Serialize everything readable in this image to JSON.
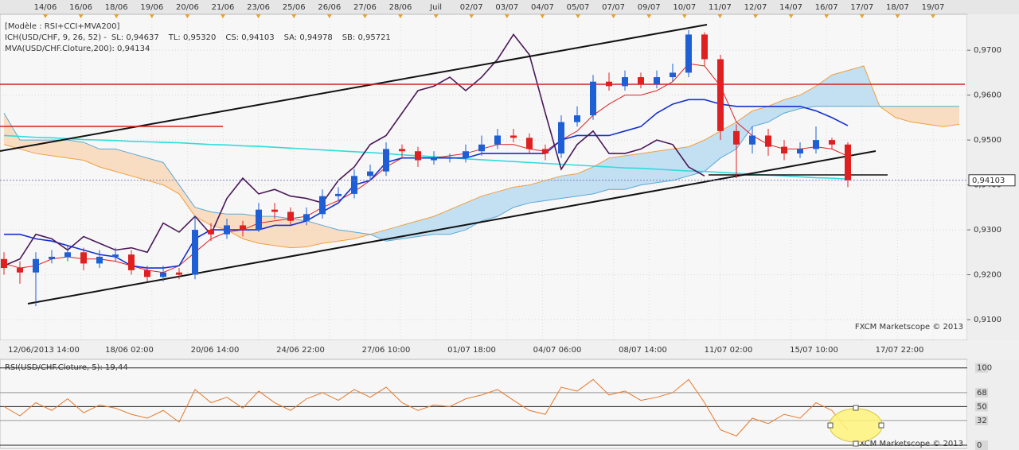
{
  "chart_data": [
    {
      "type": "candlestick",
      "title": "[Modèle : RSI+CCI+MVA200]",
      "subtitle": "ICH(USD/CHF, 9, 26, 52) -",
      "top_labels": [
        "14/06",
        "16/06",
        "18/06",
        "19/06",
        "20/06",
        "21/06",
        "23/06",
        "25/06",
        "26/06",
        "27/06",
        "28/06",
        "Juil",
        "02/07",
        "03/07",
        "04/07",
        "05/07",
        "07/07",
        "09/07",
        "10/07",
        "11/07",
        "12/07",
        "14/07",
        "16/07",
        "17/07",
        "18/07",
        "19/07"
      ],
      "bottom_labels": [
        "12/06/2013 14:00",
        "18/06 02:00",
        "20/06 14:00",
        "24/06 22:00",
        "27/06 10:00",
        "01/07 18:00",
        "04/07 06:00",
        "08/07 14:00",
        "11/07 02:00",
        "15/07 10:00",
        "17/07 22:00"
      ],
      "open": [
        0.9235,
        0.9215,
        0.9205,
        0.9235,
        0.924,
        0.925,
        0.9225,
        0.924,
        0.9245,
        0.921,
        0.9195,
        0.9205,
        0.92,
        0.93,
        0.929,
        0.931,
        0.93,
        0.9345,
        0.934,
        0.932,
        0.9335,
        0.9375,
        0.938,
        0.942,
        0.943,
        0.948,
        0.9475,
        0.9455,
        0.946,
        0.946,
        0.9475,
        0.949,
        0.951,
        0.9505,
        0.948,
        0.947,
        0.954,
        0.9555,
        0.963,
        0.962,
        0.964,
        0.9625,
        0.964,
        0.965,
        0.9735,
        0.968,
        0.952,
        0.949,
        0.951,
        0.9485,
        0.947,
        0.948,
        0.95,
        0.949,
        null,
        null,
        null,
        null,
        null,
        null,
        null
      ],
      "high": [
        0.925,
        0.923,
        0.925,
        0.9255,
        0.9265,
        0.926,
        0.9255,
        0.926,
        0.9255,
        0.922,
        0.922,
        0.9215,
        0.933,
        0.9315,
        0.9325,
        0.932,
        0.936,
        0.936,
        0.935,
        0.935,
        0.939,
        0.9395,
        0.9435,
        0.9445,
        0.9495,
        0.949,
        0.9485,
        0.9475,
        0.947,
        0.949,
        0.951,
        0.9525,
        0.9525,
        0.9515,
        0.949,
        0.9555,
        0.9575,
        0.9645,
        0.965,
        0.9655,
        0.965,
        0.9655,
        0.967,
        0.9745,
        0.974,
        0.969,
        0.9535,
        0.953,
        0.9525,
        0.95,
        0.9495,
        0.953,
        0.9505,
        0.9495,
        null,
        null,
        null,
        null,
        null,
        null,
        null
      ],
      "low": [
        0.92,
        0.918,
        0.913,
        0.9225,
        0.923,
        0.921,
        0.9215,
        0.923,
        0.92,
        0.9185,
        0.9185,
        0.919,
        0.919,
        0.9275,
        0.928,
        0.9285,
        0.9295,
        0.9325,
        0.931,
        0.931,
        0.9325,
        0.9365,
        0.937,
        0.941,
        0.942,
        0.946,
        0.944,
        0.9445,
        0.945,
        0.945,
        0.9465,
        0.948,
        0.9495,
        0.947,
        0.9455,
        0.946,
        0.953,
        0.9545,
        0.961,
        0.961,
        0.9615,
        0.9615,
        0.963,
        0.964,
        0.9665,
        0.95,
        0.9415,
        0.947,
        0.9465,
        0.9455,
        0.946,
        0.947,
        0.948,
        0.9395,
        null,
        null,
        null,
        null,
        null,
        null,
        null
      ],
      "close": [
        0.9215,
        0.9205,
        0.9235,
        0.924,
        0.925,
        0.9225,
        0.924,
        0.9245,
        0.921,
        0.9195,
        0.9205,
        0.92,
        0.93,
        0.929,
        0.931,
        0.93,
        0.9345,
        0.934,
        0.932,
        0.9335,
        0.9375,
        0.938,
        0.942,
        0.943,
        0.948,
        0.9475,
        0.9455,
        0.946,
        0.946,
        0.9475,
        0.949,
        0.951,
        0.9505,
        0.948,
        0.947,
        0.954,
        0.9555,
        0.963,
        0.962,
        0.964,
        0.9625,
        0.964,
        0.965,
        0.9735,
        0.968,
        0.952,
        0.949,
        0.951,
        0.9485,
        0.947,
        0.948,
        0.95,
        0.949,
        0.941,
        null,
        null,
        null,
        null,
        null,
        null,
        null
      ],
      "up_color": "#1f5fd6",
      "down_color": "#e02020",
      "cloud_colors": {
        "up": "#b9dcf1",
        "down": "#f9d8b8"
      },
      "series": [
        {
          "name": "SL: 0,94637",
          "color": "#e02020",
          "values": [
            0.9225,
            0.9215,
            0.922,
            0.9235,
            0.924,
            0.9235,
            0.9235,
            0.923,
            0.922,
            0.921,
            0.9205,
            0.922,
            0.925,
            0.928,
            0.9295,
            0.93,
            0.9315,
            0.932,
            0.9325,
            0.933,
            0.935,
            0.9365,
            0.9385,
            0.941,
            0.944,
            0.946,
            0.946,
            0.946,
            0.9465,
            0.947,
            0.948,
            0.949,
            0.949,
            0.948,
            0.9475,
            0.95,
            0.952,
            0.9555,
            0.958,
            0.96,
            0.96,
            0.961,
            0.963,
            0.967,
            0.9665,
            0.962,
            0.954,
            0.951,
            0.949,
            0.948,
            0.948,
            0.9485,
            0.948,
            0.9464,
            null,
            null,
            null,
            null,
            null,
            null,
            null
          ]
        },
        {
          "name": "TL: 0,95320",
          "color": "#1530d0",
          "values": [
            0.929,
            0.929,
            0.928,
            0.9275,
            0.9265,
            0.9255,
            0.9245,
            0.924,
            0.922,
            0.9215,
            0.9215,
            0.922,
            0.928,
            0.93,
            0.93,
            0.93,
            0.93,
            0.931,
            0.931,
            0.932,
            0.934,
            0.936,
            0.94,
            0.941,
            0.945,
            0.946,
            0.946,
            0.946,
            0.946,
            0.946,
            0.947,
            0.947,
            0.947,
            0.947,
            0.947,
            0.95,
            0.951,
            0.951,
            0.951,
            0.952,
            0.953,
            0.956,
            0.958,
            0.959,
            0.959,
            0.958,
            0.9575,
            0.9575,
            0.9575,
            0.9575,
            0.9575,
            0.9565,
            0.955,
            0.9532,
            null,
            null,
            null,
            null,
            null,
            null,
            null
          ]
        },
        {
          "name": "CS: 0,94103",
          "color": "#4a1858",
          "values": [
            0.922,
            0.9235,
            0.929,
            0.928,
            0.9255,
            0.9285,
            0.927,
            0.9255,
            0.926,
            0.925,
            0.9315,
            0.9295,
            0.933,
            0.929,
            0.937,
            0.9415,
            0.938,
            0.939,
            0.9375,
            0.937,
            0.936,
            0.941,
            0.944,
            0.949,
            0.951,
            0.956,
            0.961,
            0.962,
            0.964,
            0.961,
            0.964,
            0.968,
            0.9735,
            0.969,
            0.956,
            0.9435,
            0.949,
            0.952,
            0.947,
            0.947,
            0.948,
            0.95,
            0.949,
            0.944,
            0.942,
            null,
            null,
            null,
            null,
            null,
            null,
            null,
            null,
            null,
            null,
            null,
            null,
            null,
            null,
            null,
            null
          ]
        },
        {
          "name": "SA: 0,94978",
          "color": "#f0a040",
          "values": [
            0.949,
            0.948,
            0.947,
            0.9465,
            0.946,
            0.9455,
            0.944,
            0.943,
            0.942,
            0.941,
            0.94,
            0.938,
            0.933,
            0.931,
            0.93,
            0.928,
            0.927,
            0.9265,
            0.926,
            0.9262,
            0.927,
            0.9275,
            0.928,
            0.929,
            0.93,
            0.931,
            0.932,
            0.933,
            0.9345,
            0.936,
            0.9375,
            0.9385,
            0.9395,
            0.94,
            0.941,
            0.942,
            0.9425,
            0.944,
            0.946,
            0.9465,
            0.947,
            0.9475,
            0.948,
            0.9485,
            0.95,
            0.952,
            0.954,
            0.9565,
            0.9575,
            0.959,
            0.96,
            0.962,
            0.9645,
            0.9655,
            0.9665,
            0.9575,
            0.955,
            0.954,
            0.9535,
            0.953,
            0.9535
          ]
        },
        {
          "name": "SB: 0,95721",
          "color": "#5aa8d8",
          "values": [
            0.956,
            0.95,
            0.95,
            0.95,
            0.95,
            0.9495,
            0.948,
            0.948,
            0.947,
            0.946,
            0.945,
            0.94,
            0.935,
            0.934,
            0.9335,
            0.9335,
            0.933,
            0.933,
            0.9325,
            0.932,
            0.931,
            0.93,
            0.9295,
            0.929,
            0.9275,
            0.928,
            0.9285,
            0.929,
            0.929,
            0.93,
            0.932,
            0.933,
            0.935,
            0.936,
            0.9365,
            0.937,
            0.9375,
            0.938,
            0.939,
            0.939,
            0.94,
            0.9405,
            0.941,
            0.942,
            0.943,
            0.946,
            0.948,
            0.953,
            0.954,
            0.956,
            0.957,
            0.9575,
            0.9575,
            0.9575,
            0.9575,
            0.9575,
            0.9575,
            0.9575,
            0.9575,
            0.9575,
            0.9575
          ]
        },
        {
          "name": "MVA(USD/CHF.Cloture,200): 0,94134",
          "color": "#30dcdc",
          "values": [
            0.951,
            0.9508,
            0.9506,
            0.9505,
            0.9503,
            0.9501,
            0.95,
            0.9499,
            0.9497,
            0.9496,
            0.9495,
            0.9494,
            0.9492,
            0.949,
            0.9489,
            0.9487,
            0.9486,
            0.9484,
            0.9482,
            0.948,
            0.9478,
            0.9476,
            0.9474,
            0.9472,
            0.947,
            0.9467,
            0.9465,
            0.9463,
            0.9461,
            0.9458,
            0.9456,
            0.9454,
            0.9452,
            0.945,
            0.9448,
            0.9446,
            0.9444,
            0.9442,
            0.944,
            0.9438,
            0.9437,
            0.9435,
            0.9433,
            0.9431,
            0.943,
            0.9428,
            0.9426,
            0.9424,
            0.9422,
            0.942,
            0.9418,
            0.9416,
            0.9415,
            0.9413,
            null,
            null,
            null,
            null,
            null,
            null,
            null
          ]
        }
      ],
      "last_price": {
        "value": 0.94103,
        "label": "0,94103"
      },
      "ylim": [
        0.9054,
        0.978
      ],
      "yticks": [
        {
          "value": 0.91,
          "label": "0,9100"
        },
        {
          "value": 0.92,
          "label": "0,9200"
        },
        {
          "value": 0.93,
          "label": "0,9300"
        },
        {
          "value": 0.94,
          "label": "0,9400"
        },
        {
          "value": 0.95,
          "label": "0,9500"
        },
        {
          "value": 0.96,
          "label": "0,9600"
        },
        {
          "value": 0.97,
          "label": "0,9700"
        }
      ],
      "grid": true,
      "watermark": "FXCM Marketscope © 2013"
    },
    {
      "type": "line",
      "title": "RSI(USD/CHF.Cloture, 5): 19,44",
      "color": "#e8782a",
      "values": [
        50,
        38,
        55,
        45,
        60,
        42,
        52,
        48,
        40,
        35,
        45,
        30,
        72,
        55,
        62,
        48,
        70,
        55,
        45,
        60,
        68,
        58,
        72,
        62,
        75,
        55,
        45,
        52,
        50,
        60,
        65,
        72,
        58,
        45,
        40,
        75,
        70,
        85,
        65,
        70,
        58,
        62,
        68,
        85,
        55,
        20,
        12,
        35,
        28,
        40,
        35,
        55,
        45,
        19.44,
        null,
        null,
        null,
        null,
        null,
        null,
        null
      ],
      "ylim": [
        -2,
        111
      ],
      "yticks": [
        0,
        32,
        50,
        68,
        100
      ],
      "grid": true,
      "watermark": "FXCM Marketscope © 2013"
    }
  ]
}
